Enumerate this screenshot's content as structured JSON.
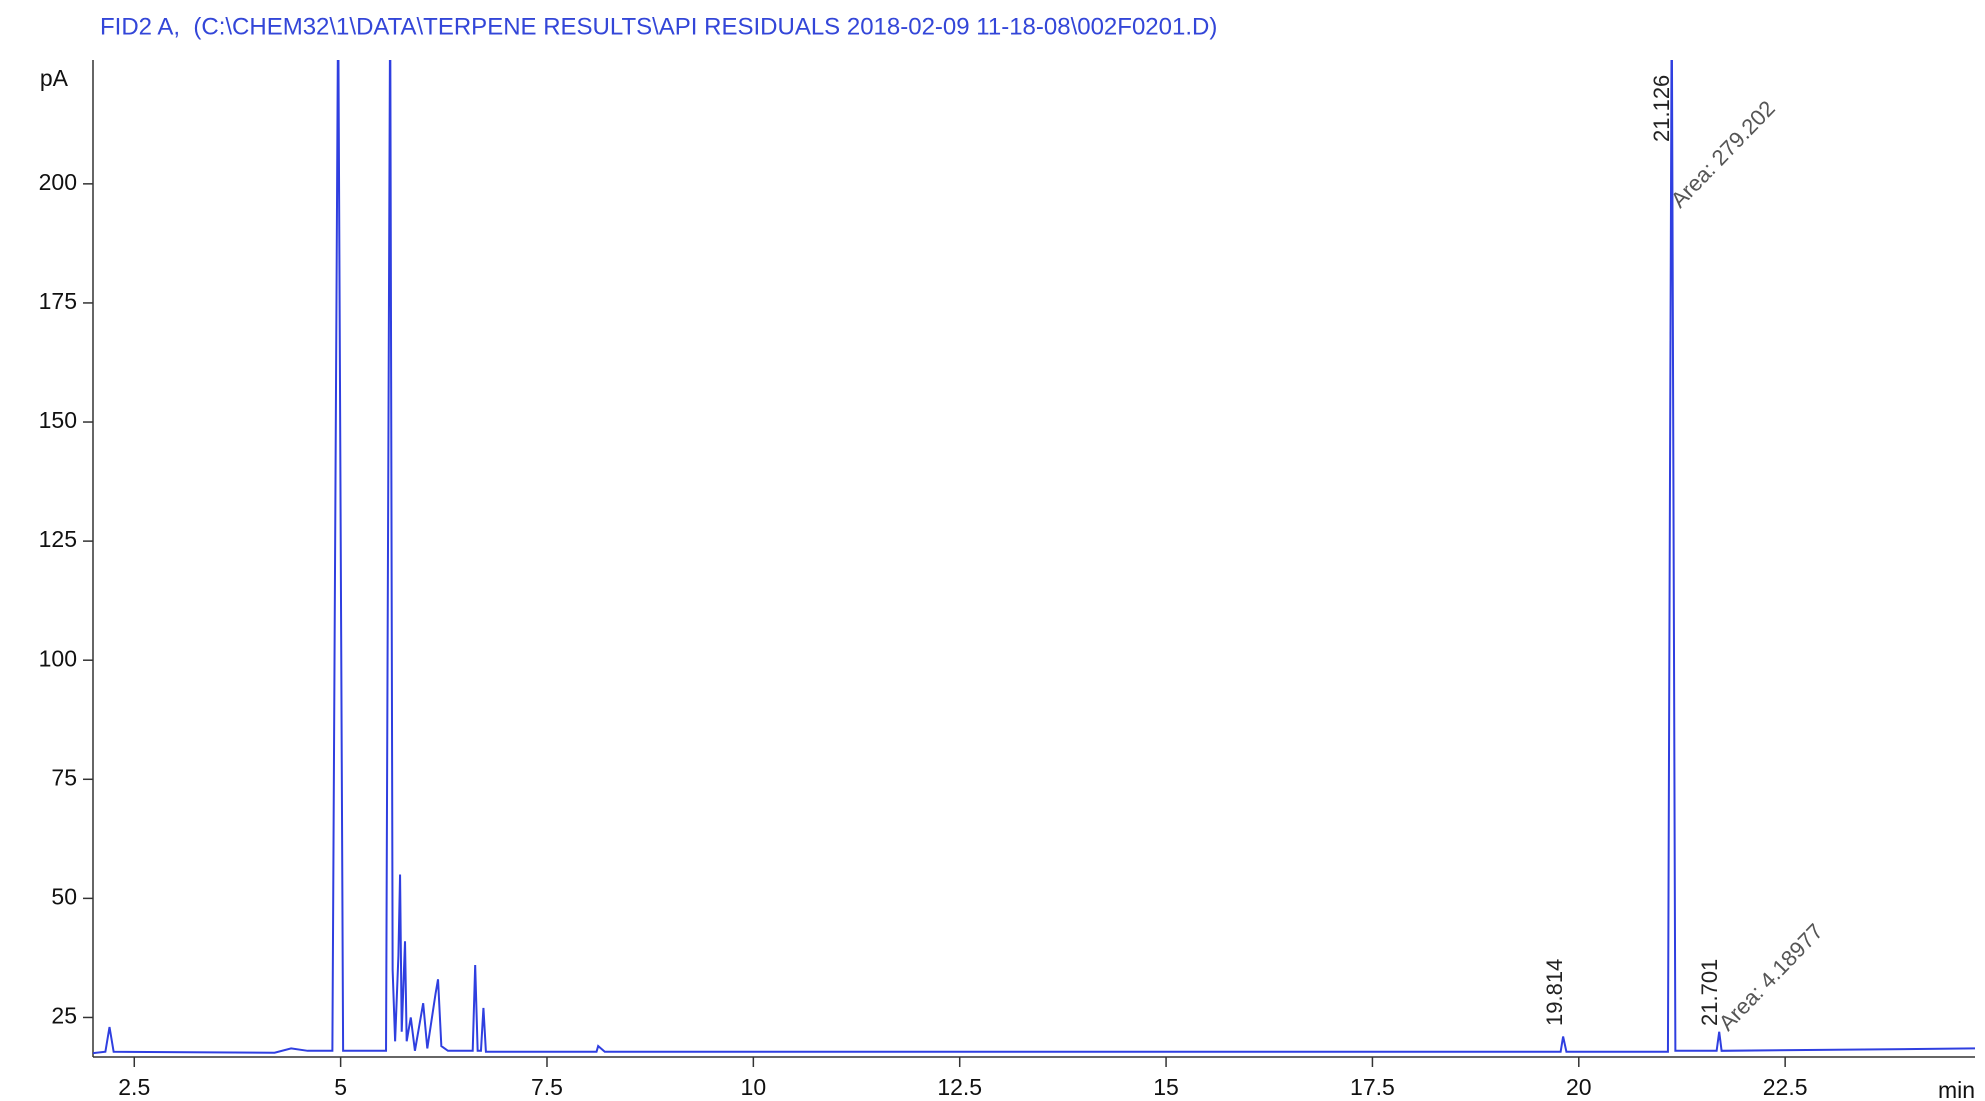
{
  "chart_data": {
    "type": "line",
    "title": "FID2 A,  (C:\\CHEM32\\1\\DATA\\TERPENE RESULTS\\API RESIDUALS 2018-02-09 11-18-08\\002F0201.D)",
    "y_label": "pA",
    "x_label": "min",
    "color": "#2f3fe0",
    "x": [
      2.0,
      2.15,
      2.2,
      2.25,
      4.2,
      4.4,
      4.6,
      4.9,
      4.97,
      5.03,
      5.55,
      5.6,
      5.63,
      5.66,
      5.7,
      5.72,
      5.74,
      5.78,
      5.8,
      5.85,
      5.9,
      6.0,
      6.05,
      6.15,
      6.18,
      6.22,
      6.3,
      6.6,
      6.63,
      6.66,
      6.7,
      6.73,
      6.76,
      8.1,
      8.12,
      8.2,
      19.78,
      19.81,
      19.85,
      21.08,
      21.126,
      21.17,
      21.67,
      21.701,
      21.73,
      24.8
    ],
    "values": [
      17.5,
      17.8,
      23,
      17.8,
      17.6,
      18.5,
      18,
      18,
      240,
      18,
      18,
      240,
      35,
      20,
      38,
      55,
      22,
      41,
      20,
      25,
      18,
      28,
      18.5,
      30,
      33,
      19,
      18,
      18,
      36,
      18,
      18,
      27,
      17.8,
      17.8,
      19,
      17.8,
      17.8,
      21,
      17.8,
      17.8,
      240,
      18,
      18,
      22,
      18,
      18.5
    ],
    "xlim": [
      2.0,
      24.8
    ],
    "ylim": [
      16.7,
      226
    ],
    "xticks": [
      2.5,
      5,
      7.5,
      10,
      12.5,
      15,
      17.5,
      20,
      22.5
    ],
    "yticks": [
      25,
      50,
      75,
      100,
      125,
      150,
      175,
      200
    ],
    "annotations": [
      "19.814",
      "21.126",
      "21.701",
      "Area: 279.202",
      "Area: 4.18977"
    ]
  }
}
